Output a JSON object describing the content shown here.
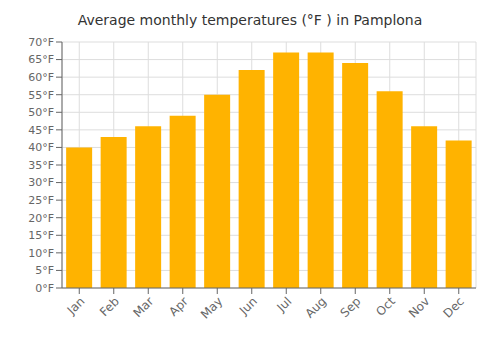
{
  "chart_data": {
    "type": "bar",
    "title": "Average monthly temperatures (°F ) in Pamplona",
    "categories": [
      "Jan",
      "Feb",
      "Mar",
      "Apr",
      "May",
      "Jun",
      "Jul",
      "Aug",
      "Sep",
      "Oct",
      "Nov",
      "Dec"
    ],
    "values": [
      40,
      43,
      46,
      49,
      55,
      62,
      67,
      67,
      64,
      56,
      46,
      42
    ],
    "color": "#FFB300",
    "ylim": [
      0,
      70
    ],
    "yticks": [
      {
        "value": 0,
        "label": "0°F"
      },
      {
        "value": 5,
        "label": "5°F"
      },
      {
        "value": 10,
        "label": "10°F"
      },
      {
        "value": 15,
        "label": "15°F"
      },
      {
        "value": 20,
        "label": "20°F"
      },
      {
        "value": 25,
        "label": "25°F"
      },
      {
        "value": 30,
        "label": "30°F"
      },
      {
        "value": 35,
        "label": "35°F"
      },
      {
        "value": 40,
        "label": "40°F"
      },
      {
        "value": 45,
        "label": "45°F"
      },
      {
        "value": 50,
        "label": "50°F"
      },
      {
        "value": 55,
        "label": "55°F"
      },
      {
        "value": 60,
        "label": "60°F"
      },
      {
        "value": 65,
        "label": "65°F"
      },
      {
        "value": 70,
        "label": "70°F"
      }
    ],
    "grid": true
  }
}
